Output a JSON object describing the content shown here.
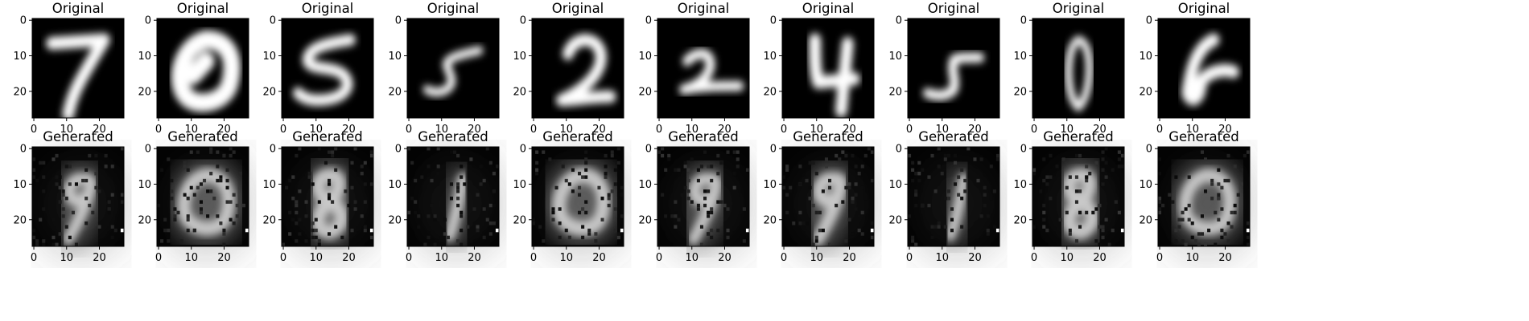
{
  "chart_data": {
    "type": "image_grid",
    "rows": 2,
    "columns": 10,
    "image_size": [
      28,
      28
    ],
    "colormap": "gray",
    "x_ticks": [
      0,
      10,
      20
    ],
    "y_ticks": [
      0,
      10,
      20
    ],
    "x_range": [
      -0.5,
      27.5
    ],
    "y_range": [
      27.5,
      -0.5
    ],
    "top_title": "Original",
    "bottom_title": "Generated",
    "originals": [
      "7",
      "0",
      "5",
      "5",
      "2",
      "2",
      "4",
      "5",
      "0",
      "6"
    ],
    "generated_likeness": [
      "9",
      "0",
      "8",
      "1",
      "0",
      "9",
      "9",
      "1",
      "8",
      "0"
    ]
  }
}
